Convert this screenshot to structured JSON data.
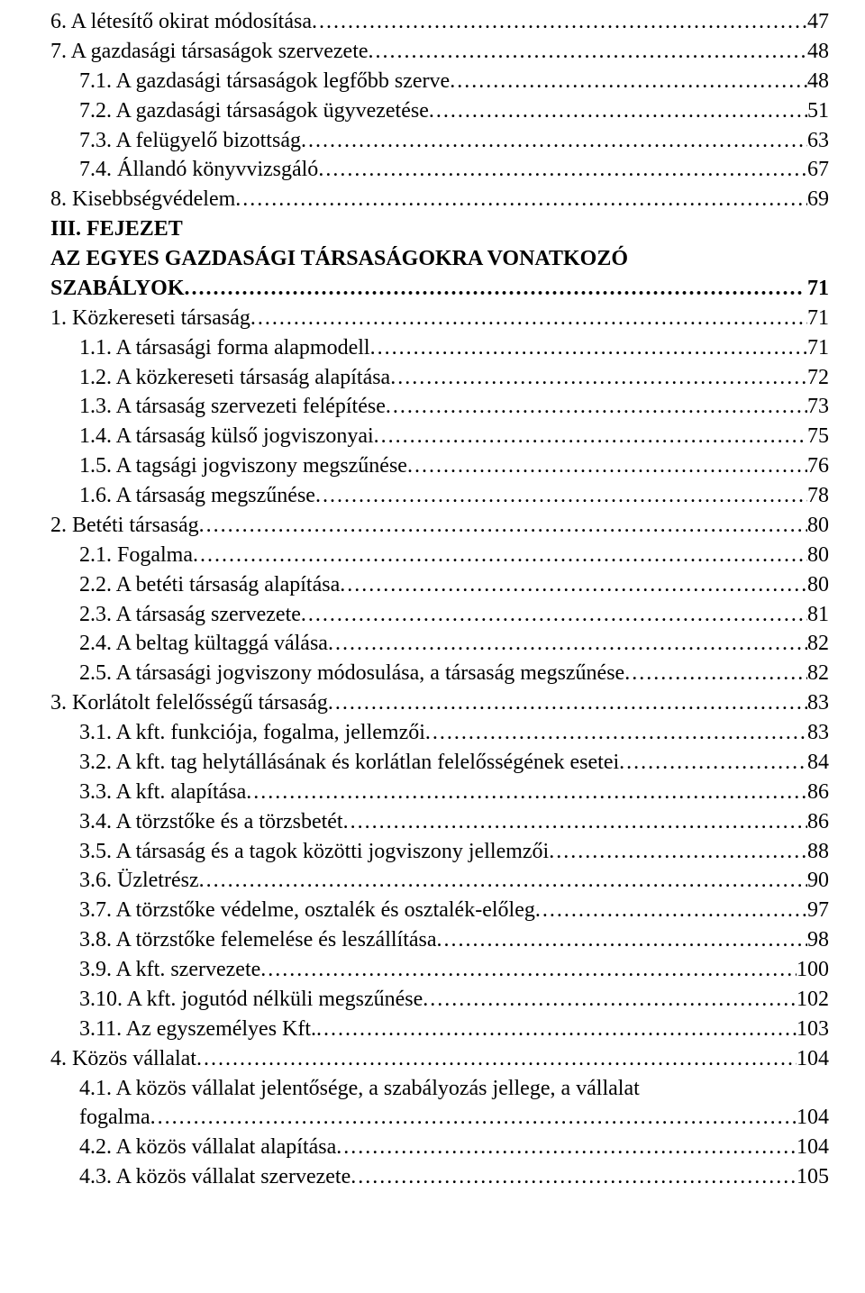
{
  "font_family": "Times New Roman",
  "font_size_pt": 18,
  "text_color": "#000000",
  "background_color": "#ffffff",
  "entries": [
    {
      "indent": 0,
      "label": "6. A létesítő okirat módosítása",
      "page": "47"
    },
    {
      "indent": 0,
      "label": "7. A gazdasági társaságok szervezete",
      "page": "48"
    },
    {
      "indent": 1,
      "label": "7.1. A gazdasági társaságok legfőbb szerve",
      "page": "48"
    },
    {
      "indent": 1,
      "label": "7.2. A gazdasági társaságok ügyvezetése",
      "page": "51"
    },
    {
      "indent": 1,
      "label": "7.3. A felügyelő bizottság",
      "page": "63"
    },
    {
      "indent": 1,
      "label": "7.4. Állandó könyvvizsgáló",
      "page": "67"
    },
    {
      "indent": 0,
      "label": "8. Kisebbségvédelem",
      "page": "69"
    },
    {
      "indent": 0,
      "heading": true,
      "label": "III. FEJEZET"
    },
    {
      "indent": 0,
      "heading": true,
      "label": "AZ EGYES GAZDASÁGI TÁRSASÁGOKRA VONATKOZÓ"
    },
    {
      "indent": 0,
      "heading": true,
      "label": "SZABÁLYOK",
      "page": " 71"
    },
    {
      "indent": 0,
      "label": "1. Közkereseti társaság",
      "page": "71"
    },
    {
      "indent": 1,
      "label": "1.1. A társasági forma alapmodell",
      "page": "71"
    },
    {
      "indent": 1,
      "label": "1.2. A közkereseti társaság alapítása",
      "page": "72"
    },
    {
      "indent": 1,
      "label": "1.3. A társaság szervezeti felépítése",
      "page": "73"
    },
    {
      "indent": 1,
      "label": "1.4. A társaság külső jogviszonyai",
      "page": "75"
    },
    {
      "indent": 1,
      "label": "1.5. A tagsági jogviszony megszűnése",
      "page": "76"
    },
    {
      "indent": 1,
      "label": "1.6. A társaság megszűnése",
      "page": "78"
    },
    {
      "indent": 0,
      "label": "2. Betéti társaság",
      "page": "80"
    },
    {
      "indent": 1,
      "label": "2.1. Fogalma",
      "page": "80"
    },
    {
      "indent": 1,
      "label": "2.2. A betéti társaság alapítása",
      "page": "80"
    },
    {
      "indent": 1,
      "label": "2.3. A társaság szervezete",
      "page": "81"
    },
    {
      "indent": 1,
      "label": "2.4. A beltag kültaggá válása",
      "page": "82"
    },
    {
      "indent": 1,
      "label": "2.5. A társasági jogviszony módosulása, a társaság megszűnése",
      "page": "82"
    },
    {
      "indent": 0,
      "label": "3. Korlátolt felelősségű társaság",
      "page": "83"
    },
    {
      "indent": 1,
      "label": "3.1. A kft. funkciója, fogalma, jellemzői",
      "page": "83"
    },
    {
      "indent": 1,
      "label": "3.2. A kft. tag helytállásának és korlátlan felelősségének esetei",
      "page": "84"
    },
    {
      "indent": 1,
      "label": "3.3. A kft. alapítása",
      "page": "86"
    },
    {
      "indent": 1,
      "label": "3.4. A törzstőke és a törzsbetét",
      "page": "86"
    },
    {
      "indent": 1,
      "label": "3.5. A társaság és a tagok közötti jogviszony jellemzői",
      "page": "88"
    },
    {
      "indent": 1,
      "label": "3.6. Üzletrész",
      "page": "90"
    },
    {
      "indent": 1,
      "label": "3.7. A törzstőke védelme, osztalék és osztalék-előleg",
      "page": "97"
    },
    {
      "indent": 1,
      "label": "3.8. A törzstőke felemelése és leszállítása",
      "page": "98"
    },
    {
      "indent": 1,
      "label": "3.9. A kft. szervezete",
      "page": "100"
    },
    {
      "indent": 1,
      "label": "3.10. A kft. jogutód nélküli megszűnése",
      "page": "102"
    },
    {
      "indent": 1,
      "label": "3.11. Az egyszemélyes Kft.",
      "page": "103"
    },
    {
      "indent": 0,
      "label": "4. Közös vállalat",
      "page": "104"
    },
    {
      "indent": 1,
      "wrap": true,
      "label_lines": [
        "4.1. A közös vállalat jelentősége, a szabályozás jellege, a vállalat",
        "fogalma"
      ],
      "page": "104"
    },
    {
      "indent": 1,
      "label": "4.2. A közös vállalat alapítása",
      "page": "104"
    },
    {
      "indent": 1,
      "label": "4.3. A közös vállalat szervezete",
      "page": "105"
    }
  ]
}
